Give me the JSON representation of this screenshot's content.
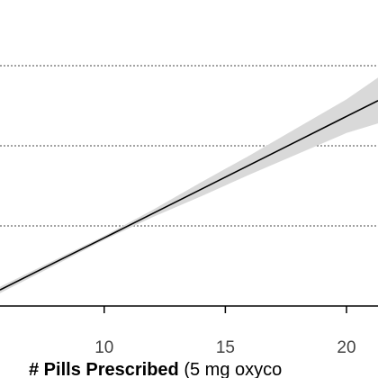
{
  "chart_data": {
    "type": "line",
    "xlabel_bold": "# Pills Prescribed",
    "xlabel_rest": " (5 mg oxyco",
    "x_ticks": [
      10,
      15,
      20
    ],
    "x_tick_labels": [
      "10",
      "15",
      "20"
    ],
    "xlim": [
      5.7,
      21.3
    ],
    "ylim": [
      0,
      4
    ],
    "grid": "horizontal dotted",
    "series": [
      {
        "x": [
          5.7,
          8,
          10,
          12,
          14,
          16,
          18,
          20,
          21.3
        ],
        "y": [
          0.2,
          0.548,
          0.851,
          1.154,
          1.457,
          1.761,
          2.064,
          2.367,
          2.564
        ],
        "lower": [
          0.16,
          0.515,
          0.825,
          1.11,
          1.37,
          1.64,
          1.9,
          2.16,
          2.28
        ],
        "upper": [
          0.24,
          0.58,
          0.875,
          1.2,
          1.545,
          1.88,
          2.23,
          2.58,
          2.85
        ]
      }
    ],
    "gridlines_y": [
      1,
      2,
      3,
      4
    ]
  },
  "colors": {
    "line": "#000000",
    "band": "#d9d9d9",
    "grid": "#444444",
    "axis": "#000000"
  }
}
